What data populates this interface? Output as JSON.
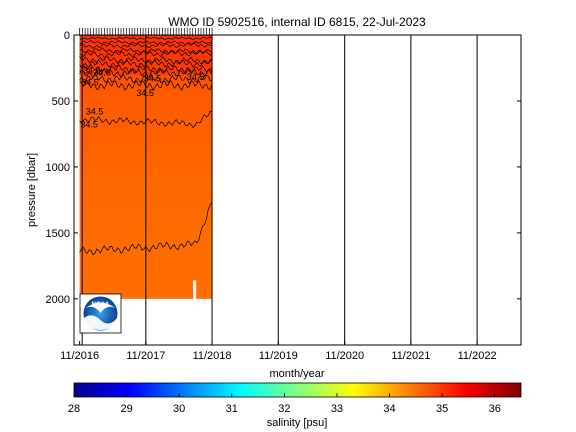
{
  "chart_data": {
    "type": "heatmap",
    "title": "WMO ID 5902516, internal ID 6815, 22-Jul-2023",
    "xlabel": "month/year",
    "ylabel": "pressure [dbar]",
    "x_tick_labels": [
      "11/2016",
      "11/2017",
      "11/2018",
      "11/2019",
      "11/2020",
      "11/2021",
      "11/2022"
    ],
    "x_range": [
      "2016-10-01",
      "2023-07-01"
    ],
    "data_x_range": [
      "2016-11-01",
      "2018-11-01"
    ],
    "y_ticks": [
      0,
      500,
      1000,
      1500,
      2000
    ],
    "ylim": [
      0,
      2350
    ],
    "y_reversed": true,
    "profile_bottom_pressure": 2000,
    "colorbar": {
      "label": "salinity [psu]",
      "ticks": [
        28,
        29,
        30,
        31,
        32,
        33,
        34,
        35,
        36
      ],
      "range": [
        28,
        36.5
      ],
      "colormap": "jet"
    },
    "vertical_lines": [
      "2016-11-15",
      "2017-11-01",
      "2018-11-01",
      "2019-11-01",
      "2020-11-01",
      "2021-11-01",
      "2022-11-01"
    ],
    "contours": [
      {
        "level": "34.5",
        "pressure_approx": [
          0,
          400
        ]
      },
      {
        "level": "34.5",
        "pressure_approx": [
          600,
          700
        ]
      },
      {
        "level": "34.5",
        "pressure_approx": [
          1300,
          1720
        ]
      }
    ],
    "contour_labels": [
      {
        "text": "34.6",
        "x": "2016-11-20",
        "y": 270
      },
      {
        "text": "34.6",
        "x": "2017-01-15",
        "y": 285
      },
      {
        "text": "34.5",
        "x": "2016-11-10",
        "y": 360
      },
      {
        "text": "34.5",
        "x": "2017-10-20",
        "y": 330
      },
      {
        "text": "34.5",
        "x": "2018-06-15",
        "y": 320
      },
      {
        "text": "34.5",
        "x": "2017-09-10",
        "y": 440
      },
      {
        "text": "34.5",
        "x": "2016-12-05",
        "y": 580
      },
      {
        "text": "34.5",
        "x": "2016-11-05",
        "y": 680
      }
    ],
    "logo": "NOAA"
  }
}
